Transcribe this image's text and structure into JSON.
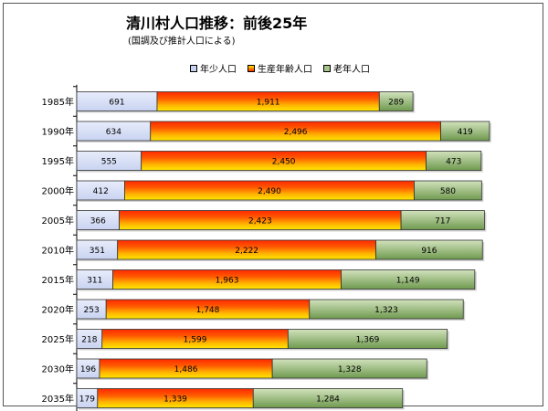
{
  "title": "清川村人口推移：前後25年",
  "subtitle": "(国調及び推計人口による)",
  "legend": [
    "年少人口",
    "生産年齢人口",
    "老年人口"
  ],
  "colors": {
    "young": "#c9d3f1",
    "working_top": "#ffe600",
    "working_bottom": "#ff2a00",
    "elder": "#a9c48a",
    "elder_dark": "#6f9a4f",
    "border": "#333333"
  },
  "chart_data": {
    "type": "bar",
    "orientation": "horizontal",
    "stacked": true,
    "categories": [
      "1985年",
      "1990年",
      "1995年",
      "2000年",
      "2005年",
      "2010年",
      "2015年",
      "2020年",
      "2025年",
      "2030年",
      "2035年"
    ],
    "series": [
      {
        "name": "年少人口",
        "values": [
          691,
          634,
          555,
          412,
          366,
          351,
          311,
          253,
          218,
          196,
          179
        ]
      },
      {
        "name": "生産年齢人口",
        "values": [
          1911,
          2496,
          2450,
          2490,
          2423,
          2222,
          1963,
          1748,
          1599,
          1486,
          1339
        ]
      },
      {
        "name": "老年人口",
        "values": [
          289,
          419,
          473,
          580,
          717,
          916,
          1149,
          1323,
          1369,
          1328,
          1284
        ]
      }
    ],
    "value_labels": [
      [
        "691",
        "1,911",
        "289"
      ],
      [
        "634",
        "2,496",
        "419"
      ],
      [
        "555",
        "2,450",
        "473"
      ],
      [
        "412",
        "2,490",
        "580"
      ],
      [
        "366",
        "2,423",
        "717"
      ],
      [
        "351",
        "2,222",
        "916"
      ],
      [
        "311",
        "1,963",
        "1,149"
      ],
      [
        "253",
        "1,748",
        "1,323"
      ],
      [
        "218",
        "1,599",
        "1,369"
      ],
      [
        "196",
        "1,486",
        "1,328"
      ],
      [
        "179",
        "1,339",
        "1,284"
      ]
    ],
    "xlim": [
      0,
      3495
    ],
    "legend_position": "top",
    "grid": false
  }
}
